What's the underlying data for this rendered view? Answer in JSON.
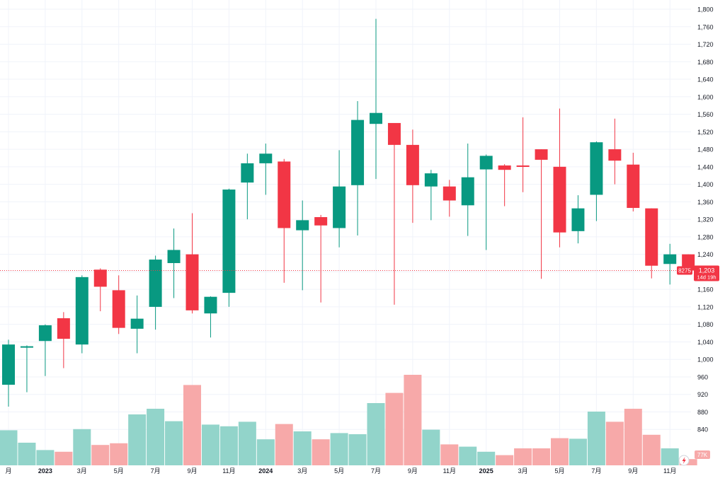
{
  "chart_data": {
    "type": "candlestick",
    "interval": "monthly",
    "y_axis": {
      "min": 800,
      "max": 1800,
      "ticks": [
        840,
        880,
        920,
        960,
        1000,
        1040,
        1080,
        1120,
        1160,
        1200,
        1240,
        1280,
        1320,
        1360,
        1400,
        1440,
        1480,
        1520,
        1560,
        1600,
        1640,
        1680,
        1720,
        1760,
        1800
      ]
    },
    "x_axis_labels": [
      {
        "label": "月",
        "index": 0
      },
      {
        "label": "2023",
        "index": 2,
        "bold": true
      },
      {
        "label": "3月",
        "index": 4
      },
      {
        "label": "5月",
        "index": 6
      },
      {
        "label": "7月",
        "index": 8
      },
      {
        "label": "9月",
        "index": 10
      },
      {
        "label": "11月",
        "index": 12
      },
      {
        "label": "2024",
        "index": 14,
        "bold": true
      },
      {
        "label": "3月",
        "index": 16
      },
      {
        "label": "5月",
        "index": 18
      },
      {
        "label": "7月",
        "index": 20
      },
      {
        "label": "9月",
        "index": 22
      },
      {
        "label": "11月",
        "index": 24
      },
      {
        "label": "2025",
        "index": 26,
        "bold": true
      },
      {
        "label": "3月",
        "index": 28
      },
      {
        "label": "5月",
        "index": 30
      },
      {
        "label": "7月",
        "index": 32
      },
      {
        "label": "9月",
        "index": 34
      },
      {
        "label": "11月",
        "index": 36
      }
    ],
    "candles": [
      {
        "o": 942,
        "h": 1045,
        "l": 892,
        "c": 1034,
        "v": 0.62
      },
      {
        "o": 1028,
        "h": 1032,
        "l": 925,
        "c": 1030,
        "v": 0.4
      },
      {
        "o": 1042,
        "h": 1080,
        "l": 962,
        "c": 1078,
        "v": 0.27
      },
      {
        "o": 1094,
        "h": 1108,
        "l": 980,
        "c": 1047,
        "v": 0.24
      },
      {
        "o": 1034,
        "h": 1192,
        "l": 1014,
        "c": 1188,
        "v": 0.64
      },
      {
        "o": 1205,
        "h": 1208,
        "l": 1110,
        "c": 1166,
        "v": 0.36
      },
      {
        "o": 1158,
        "h": 1192,
        "l": 1058,
        "c": 1072,
        "v": 0.39
      },
      {
        "o": 1070,
        "h": 1146,
        "l": 1014,
        "c": 1093,
        "v": 0.9
      },
      {
        "o": 1120,
        "h": 1237,
        "l": 1068,
        "c": 1228,
        "v": 1.0
      },
      {
        "o": 1220,
        "h": 1299,
        "l": 1140,
        "c": 1250,
        "v": 0.78
      },
      {
        "o": 1240,
        "h": 1334,
        "l": 1105,
        "c": 1112,
        "v": 1.42
      },
      {
        "o": 1105,
        "h": 1144,
        "l": 1050,
        "c": 1143,
        "v": 0.72
      },
      {
        "o": 1152,
        "h": 1390,
        "l": 1120,
        "c": 1388,
        "v": 0.69
      },
      {
        "o": 1404,
        "h": 1470,
        "l": 1320,
        "c": 1448,
        "v": 0.77
      },
      {
        "o": 1448,
        "h": 1493,
        "l": 1376,
        "c": 1470,
        "v": 0.46
      },
      {
        "o": 1452,
        "h": 1458,
        "l": 1175,
        "c": 1300,
        "v": 0.73
      },
      {
        "o": 1295,
        "h": 1363,
        "l": 1158,
        "c": 1318,
        "v": 0.6
      },
      {
        "o": 1325,
        "h": 1330,
        "l": 1130,
        "c": 1306,
        "v": 0.46
      },
      {
        "o": 1300,
        "h": 1478,
        "l": 1256,
        "c": 1395,
        "v": 0.57
      },
      {
        "o": 1398,
        "h": 1590,
        "l": 1283,
        "c": 1547,
        "v": 0.55
      },
      {
        "o": 1538,
        "h": 1778,
        "l": 1412,
        "c": 1563,
        "v": 1.1
      },
      {
        "o": 1540,
        "h": 1540,
        "l": 1125,
        "c": 1490,
        "v": 1.28
      },
      {
        "o": 1490,
        "h": 1525,
        "l": 1312,
        "c": 1398,
        "v": 1.6
      },
      {
        "o": 1395,
        "h": 1433,
        "l": 1318,
        "c": 1425,
        "v": 0.63
      },
      {
        "o": 1395,
        "h": 1410,
        "l": 1326,
        "c": 1363,
        "v": 0.37
      },
      {
        "o": 1352,
        "h": 1493,
        "l": 1282,
        "c": 1416,
        "v": 0.33
      },
      {
        "o": 1434,
        "h": 1468,
        "l": 1250,
        "c": 1465,
        "v": 0.24
      },
      {
        "o": 1443,
        "h": 1446,
        "l": 1350,
        "c": 1433,
        "v": 0.18
      },
      {
        "o": 1443,
        "h": 1553,
        "l": 1382,
        "c": 1440,
        "v": 0.3
      },
      {
        "o": 1480,
        "h": 1480,
        "l": 1184,
        "c": 1456,
        "v": 0.3
      },
      {
        "o": 1440,
        "h": 1573,
        "l": 1256,
        "c": 1290,
        "v": 0.48
      },
      {
        "o": 1293,
        "h": 1375,
        "l": 1265,
        "c": 1345,
        "v": 0.47
      },
      {
        "o": 1376,
        "h": 1498,
        "l": 1316,
        "c": 1496,
        "v": 0.95
      },
      {
        "o": 1480,
        "h": 1550,
        "l": 1400,
        "c": 1454,
        "v": 0.77
      },
      {
        "o": 1445,
        "h": 1472,
        "l": 1338,
        "c": 1346,
        "v": 1.0
      },
      {
        "o": 1345,
        "h": 1345,
        "l": 1185,
        "c": 1214,
        "v": 0.54
      },
      {
        "o": 1218,
        "h": 1264,
        "l": 1171,
        "c": 1240,
        "v": 0.3
      },
      {
        "o": 1240,
        "h": 1240,
        "l": 1198,
        "c": 1203,
        "v": 0.11
      }
    ],
    "colors": {
      "up": "#089981",
      "down": "#f23645",
      "up_volume": "#92d4ca",
      "down_volume": "#f7a9a9",
      "grid": "#f0f3fa",
      "axis_text": "#131722"
    },
    "last_price": {
      "value": 1203,
      "label": "1,203",
      "countdown": "14d 19h",
      "ticker": "8275"
    },
    "volume_label": "77K",
    "current_price_line": true
  }
}
